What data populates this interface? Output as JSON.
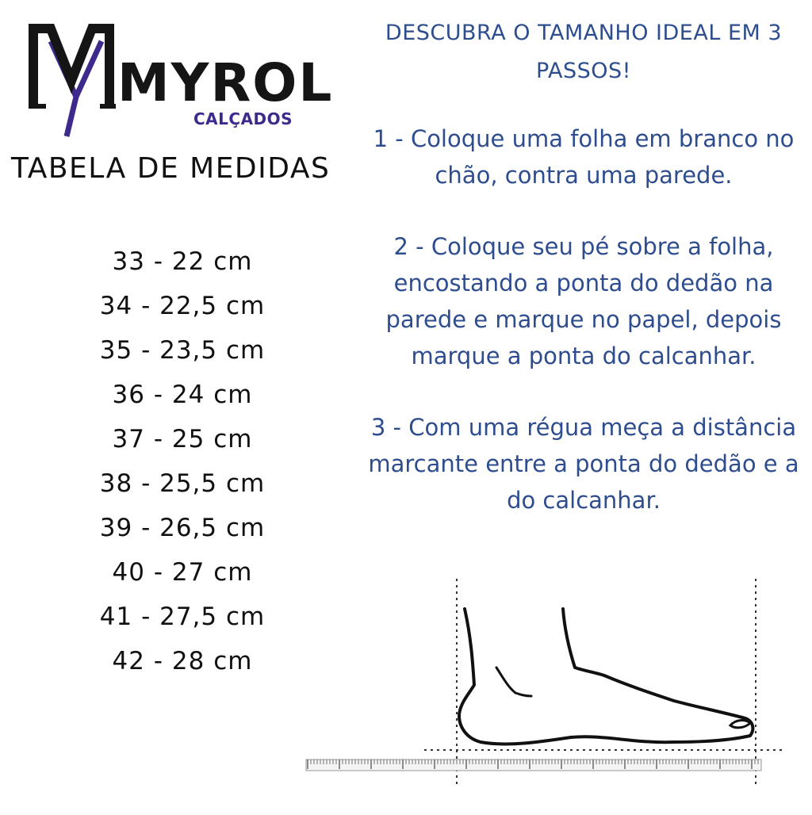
{
  "logo": {
    "monogram": "MY",
    "brand": "MYROL",
    "subbrand": "CALÇADOS",
    "colors": {
      "dark": "#151515",
      "accent": "#3d2a8c"
    }
  },
  "table": {
    "title": "TABELA DE MEDIDAS",
    "rows": [
      "33 - 22 cm",
      "34 - 22,5 cm",
      "35 - 23,5 cm",
      "36 - 24 cm",
      "37 - 25 cm",
      "38 - 25,5 cm",
      "39 - 26,5 cm",
      "40 - 27 cm",
      "41 - 27,5 cm",
      "42 - 28 cm"
    ]
  },
  "instructions": {
    "headline": "DESCUBRA O TAMANHO IDEAL EM 3 PASSOS!",
    "steps": [
      "1 - Coloque uma folha em branco no chão, contra uma parede.",
      "2 - Coloque seu pé sobre a folha, encostando a ponta do dedão na parede e marque no papel, depois marque a ponta do calcanhar.",
      "3 - Com uma régua meça a distância marcante entre a ponta do dedão e a do calcanhar."
    ],
    "color": "#2e4d8f"
  },
  "illustration": {
    "foot_icon": "foot-outline-icon",
    "ruler_icon": "ruler-icon"
  }
}
